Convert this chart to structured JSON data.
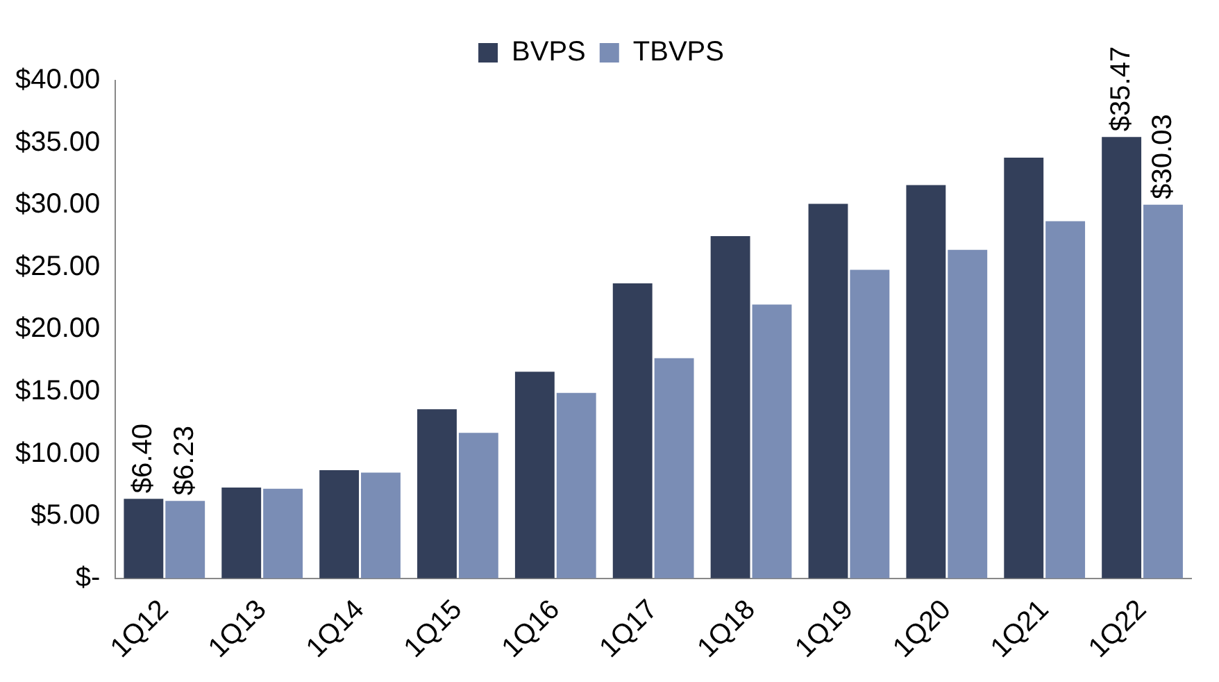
{
  "chart_data": {
    "type": "bar",
    "categories": [
      "1Q12",
      "1Q13",
      "1Q14",
      "1Q15",
      "1Q16",
      "1Q17",
      "1Q18",
      "1Q19",
      "1Q20",
      "1Q21",
      "1Q22"
    ],
    "series": [
      {
        "name": "BVPS",
        "color": "#333f5a",
        "values": [
          6.4,
          7.3,
          8.7,
          13.6,
          16.6,
          23.7,
          27.5,
          30.1,
          31.6,
          33.8,
          35.47
        ],
        "value_labels": [
          "$6.40",
          null,
          null,
          null,
          null,
          null,
          null,
          null,
          null,
          null,
          "$35.47"
        ]
      },
      {
        "name": "TBVPS",
        "color": "#7a8db5",
        "values": [
          6.23,
          7.2,
          8.5,
          11.7,
          14.9,
          17.7,
          22.0,
          24.8,
          26.4,
          28.7,
          30.03
        ],
        "value_labels": [
          "$6.23",
          null,
          null,
          null,
          null,
          null,
          null,
          null,
          null,
          null,
          "$30.03"
        ]
      }
    ],
    "ylim": [
      0,
      40
    ],
    "yticks": [
      {
        "value": 0,
        "label": "$-"
      },
      {
        "value": 5,
        "label": "$5.00"
      },
      {
        "value": 10,
        "label": "$10.00"
      },
      {
        "value": 15,
        "label": "$15.00"
      },
      {
        "value": 20,
        "label": "$20.00"
      },
      {
        "value": 25,
        "label": "$25.00"
      },
      {
        "value": 30,
        "label": "$30.00"
      },
      {
        "value": 35,
        "label": "$35.00"
      },
      {
        "value": 40,
        "label": "$40.00"
      }
    ],
    "grid": false,
    "legend": "top"
  }
}
